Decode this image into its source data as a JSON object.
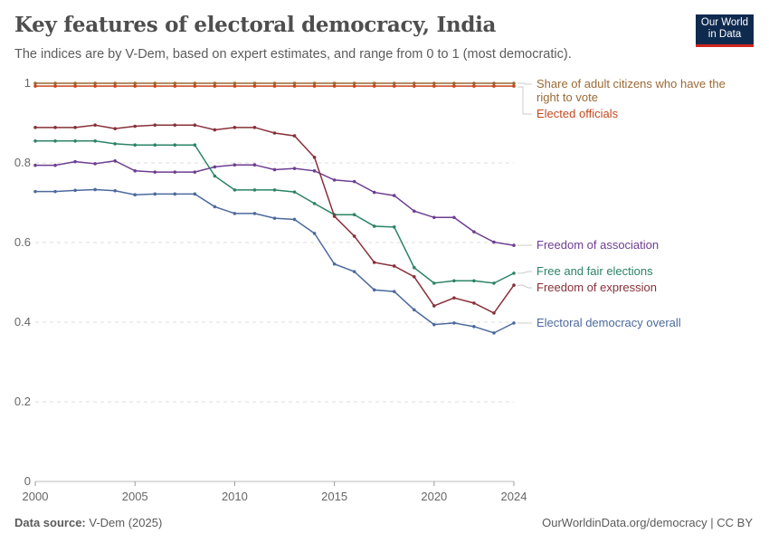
{
  "header": {
    "title": "Key features of electoral democracy, India",
    "subtitle": "The indices are by V-Dem, based on expert estimates, and range from 0 to 1 (most democratic).",
    "logo": "Our World in Data"
  },
  "footer": {
    "source_label": "Data source:",
    "source": "V-Dem (2025)",
    "link": "OurWorldinData.org/democracy | CC BY"
  },
  "chart_data": {
    "type": "line",
    "title": "Key features of electoral democracy, India",
    "x": [
      2000,
      2001,
      2002,
      2003,
      2004,
      2005,
      2006,
      2007,
      2008,
      2009,
      2010,
      2011,
      2012,
      2013,
      2014,
      2015,
      2016,
      2017,
      2018,
      2019,
      2020,
      2021,
      2022,
      2023,
      2024
    ],
    "xlim": [
      2000,
      2024
    ],
    "ylim": [
      0,
      1
    ],
    "x_ticks": [
      "2000",
      "2005",
      "2010",
      "2015",
      "2020",
      "2024"
    ],
    "y_ticks": [
      "0",
      "0.2",
      "0.4",
      "0.6",
      "0.8",
      "1"
    ],
    "grid": "horizontal dashed",
    "legend": "right-inline labels",
    "series": [
      {
        "name": "Share of adult citizens who have the right to vote",
        "color": "#9a6a35",
        "values": [
          1,
          1,
          1,
          1,
          1,
          1,
          1,
          1,
          1,
          1,
          1,
          1,
          1,
          1,
          1,
          1,
          1,
          1,
          1,
          1,
          1,
          1,
          1,
          1,
          1
        ]
      },
      {
        "name": "Elected officials",
        "color": "#c4491f",
        "values": [
          0.993,
          0.993,
          0.993,
          0.993,
          0.993,
          0.993,
          0.993,
          0.993,
          0.993,
          0.993,
          0.993,
          0.993,
          0.993,
          0.993,
          0.993,
          0.993,
          0.993,
          0.993,
          0.993,
          0.993,
          0.993,
          0.993,
          0.993,
          0.993,
          0.993
        ]
      },
      {
        "name": "Freedom of association",
        "color": "#6d3e91",
        "values": [
          0.794,
          0.794,
          0.803,
          0.798,
          0.805,
          0.78,
          0.777,
          0.777,
          0.777,
          0.79,
          0.795,
          0.795,
          0.783,
          0.786,
          0.78,
          0.757,
          0.753,
          0.726,
          0.718,
          0.679,
          0.663,
          0.663,
          0.627,
          0.601,
          0.593
        ]
      },
      {
        "name": "Free and fair elections",
        "color": "#2c8465",
        "values": [
          0.855,
          0.855,
          0.855,
          0.855,
          0.848,
          0.845,
          0.845,
          0.845,
          0.845,
          0.767,
          0.732,
          0.732,
          0.732,
          0.727,
          0.698,
          0.67,
          0.67,
          0.641,
          0.639,
          0.537,
          0.498,
          0.504,
          0.504,
          0.498,
          0.523
        ]
      },
      {
        "name": "Freedom of expression",
        "color": "#883039",
        "values": [
          0.889,
          0.889,
          0.889,
          0.895,
          0.886,
          0.892,
          0.895,
          0.895,
          0.895,
          0.883,
          0.889,
          0.889,
          0.875,
          0.868,
          0.814,
          0.666,
          0.616,
          0.55,
          0.541,
          0.514,
          0.441,
          0.461,
          0.448,
          0.423,
          0.493
        ]
      },
      {
        "name": "Electoral democracy overall",
        "color": "#4c6a9c",
        "values": [
          0.728,
          0.728,
          0.731,
          0.733,
          0.73,
          0.72,
          0.722,
          0.722,
          0.722,
          0.69,
          0.673,
          0.673,
          0.661,
          0.658,
          0.623,
          0.546,
          0.527,
          0.481,
          0.477,
          0.431,
          0.394,
          0.398,
          0.389,
          0.373,
          0.398
        ]
      }
    ]
  }
}
